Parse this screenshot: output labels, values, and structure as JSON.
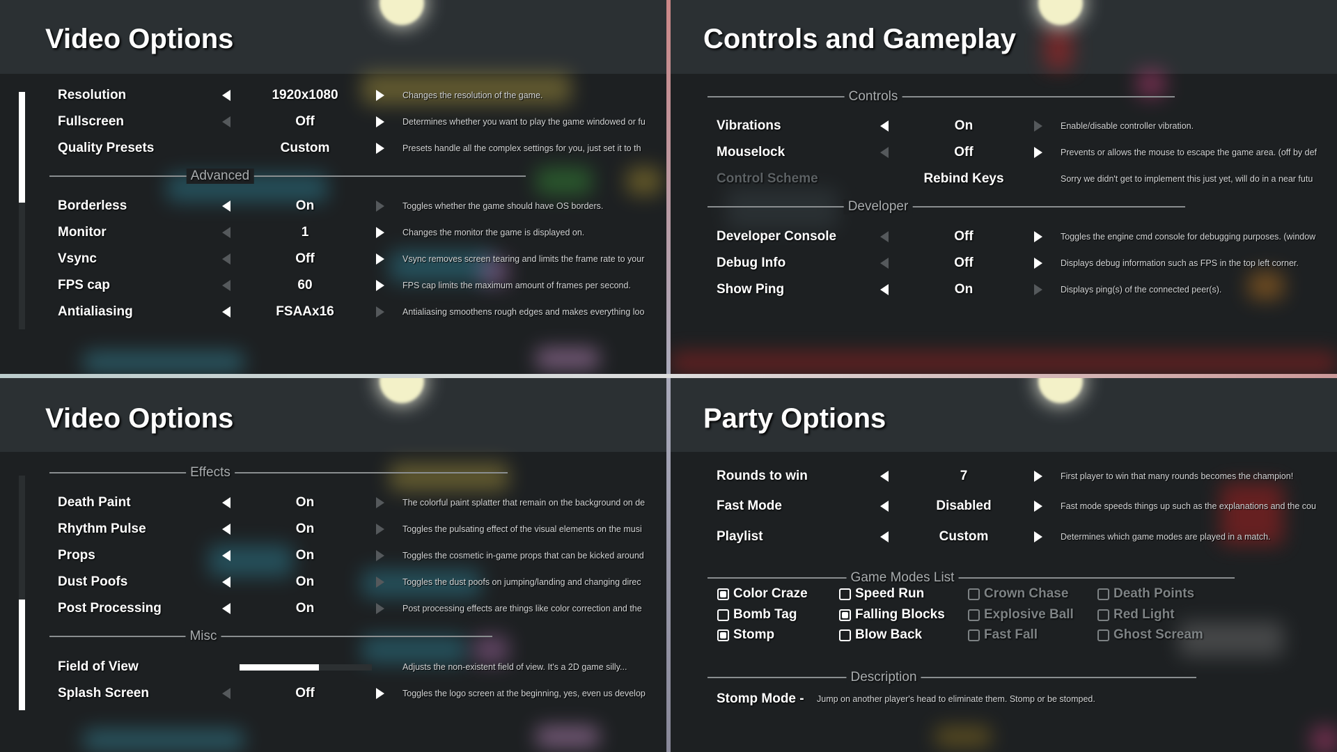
{
  "video_options_1": {
    "title": "Video Options",
    "rows": [
      {
        "label": "Resolution",
        "value": "1920x1080",
        "left": "on",
        "right": "on",
        "desc": "Changes the resolution of the game."
      },
      {
        "label": "Fullscreen",
        "value": "Off",
        "left": "dim",
        "right": "on",
        "desc": "Determines whether you want to play the game windowed or fu"
      },
      {
        "label": "Quality Presets",
        "value": "Custom",
        "left": "hid",
        "right": "on",
        "desc": "Presets handle all the complex settings for you, just set it to th"
      }
    ],
    "section": "Advanced",
    "rows2": [
      {
        "label": "Borderless",
        "value": "On",
        "left": "on",
        "right": "dim",
        "desc": "Toggles whether the game should have OS borders."
      },
      {
        "label": "Monitor",
        "value": "1",
        "left": "dim",
        "right": "on",
        "desc": "Changes the monitor the game is displayed on."
      },
      {
        "label": "Vsync",
        "value": "Off",
        "left": "dim",
        "right": "on",
        "desc": "Vsync removes screen tearing and limits the frame rate to your"
      },
      {
        "label": "FPS cap",
        "value": "60",
        "left": "dim",
        "right": "on",
        "desc": "FPS cap limits the maximum amount of frames per second."
      },
      {
        "label": "Antialiasing",
        "value": "FSAAx16",
        "left": "on",
        "right": "dim",
        "desc": "Antialiasing smoothens rough edges and makes everything loo"
      }
    ]
  },
  "controls": {
    "title": "Controls and Gameplay",
    "section": "Controls",
    "rows": [
      {
        "label": "Vibrations",
        "value": "On",
        "left": "on",
        "right": "dim",
        "desc": "Enable/disable controller vibration."
      },
      {
        "label": "Mouselock",
        "value": "Off",
        "left": "dim",
        "right": "on",
        "desc": "Prevents or allows the mouse to escape the game area. (off by def"
      },
      {
        "label": "Control Scheme",
        "value": "Rebind Keys",
        "left": "hid",
        "right": "hid",
        "disabled": true,
        "desc": "Sorry we didn't get to implement this just yet, will do in a near futu"
      }
    ],
    "section2": "Developer",
    "rows2": [
      {
        "label": "Developer Console",
        "value": "Off",
        "left": "dim",
        "right": "on",
        "desc": "Toggles the engine cmd console for debugging purposes. (window"
      },
      {
        "label": "Debug Info",
        "value": "Off",
        "left": "dim",
        "right": "on",
        "desc": "Displays debug information such as FPS in the top left corner."
      },
      {
        "label": "Show Ping",
        "value": "On",
        "left": "on",
        "right": "dim",
        "desc": "Displays ping(s) of the connected peer(s)."
      }
    ]
  },
  "video_options_2": {
    "title": "Video Options",
    "section": "Effects",
    "rows": [
      {
        "label": "Death Paint",
        "value": "On",
        "left": "on",
        "right": "dim",
        "desc": "The colorful paint splatter that remain on the background on de"
      },
      {
        "label": "Rhythm Pulse",
        "value": "On",
        "left": "on",
        "right": "dim",
        "desc": "Toggles the pulsating effect of the visual elements on the musi"
      },
      {
        "label": "Props",
        "value": "On",
        "left": "on",
        "right": "dim",
        "desc": "Toggles the cosmetic in-game props that can be kicked around"
      },
      {
        "label": "Dust Poofs",
        "value": "On",
        "left": "on",
        "right": "dim",
        "desc": "Toggles the dust poofs on jumping/landing and changing direc"
      },
      {
        "label": "Post Processing",
        "value": "On",
        "left": "on",
        "right": "dim",
        "desc": "Post processing effects are things like color correction and the"
      }
    ],
    "section2": "Misc",
    "fov": {
      "label": "Field of View",
      "level": 0.6,
      "desc": "Adjusts the non-existent field of view. It's a 2D game silly..."
    },
    "splash": {
      "label": "Splash Screen",
      "value": "Off",
      "left": "dim",
      "right": "on",
      "desc": "Toggles the logo screen at the beginning, yes, even us develop"
    }
  },
  "party": {
    "title": "Party Options",
    "rows": [
      {
        "label": "Rounds to win",
        "value": "7",
        "left": "on",
        "right": "on",
        "desc": "First player to win that many rounds becomes the champion!"
      },
      {
        "label": "Fast Mode",
        "value": "Disabled",
        "left": "on",
        "right": "on",
        "desc": "Fast mode speeds things up such as the explanations and the cou"
      },
      {
        "label": "Playlist",
        "value": "Custom",
        "left": "on",
        "right": "on",
        "desc": "Determines which game modes are played in a match."
      }
    ],
    "section": "Game Modes List",
    "modes": [
      [
        {
          "label": "Color Craze",
          "checked": true
        },
        {
          "label": "Bomb Tag",
          "checked": false
        },
        {
          "label": "Stomp",
          "checked": true
        }
      ],
      [
        {
          "label": "Speed Run",
          "checked": false
        },
        {
          "label": "Falling Blocks",
          "checked": true
        },
        {
          "label": "Blow Back",
          "checked": false
        }
      ],
      [
        {
          "label": "Crown Chase",
          "checked": false,
          "disabled": true
        },
        {
          "label": "Explosive Ball",
          "checked": false,
          "disabled": true
        },
        {
          "label": "Fast Fall",
          "checked": false,
          "disabled": true
        }
      ],
      [
        {
          "label": "Death Points",
          "checked": false,
          "disabled": true
        },
        {
          "label": "Red Light",
          "checked": false,
          "disabled": true
        },
        {
          "label": "Ghost Scream",
          "checked": false,
          "disabled": true
        }
      ]
    ],
    "section2": "Description",
    "description": {
      "name": "Stomp Mode -",
      "text": "Jump on another player's head to eliminate them. Stomp or be stomped."
    }
  }
}
